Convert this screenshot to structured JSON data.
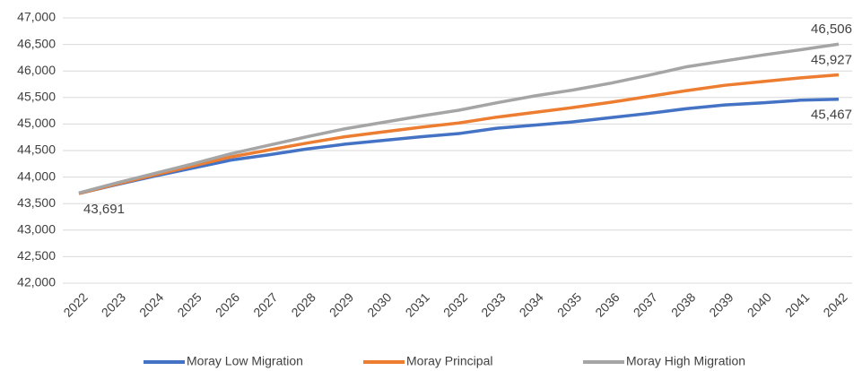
{
  "chart_data": {
    "type": "line",
    "categories": [
      "2022",
      "2023",
      "2024",
      "2025",
      "2026",
      "2027",
      "2028",
      "2029",
      "2030",
      "2031",
      "2032",
      "2033",
      "2034",
      "2035",
      "2036",
      "2037",
      "2038",
      "2039",
      "2040",
      "2041",
      "2042"
    ],
    "series": [
      {
        "name": "Moray Low Migration",
        "color": "#4472c4",
        "values": [
          43691,
          43860,
          44020,
          44170,
          44320,
          44420,
          44530,
          44620,
          44690,
          44760,
          44820,
          44920,
          44980,
          45040,
          45120,
          45200,
          45290,
          45360,
          45400,
          45450,
          45467
        ],
        "value_labels": [
          "43,691",
          null,
          null,
          null,
          null,
          null,
          null,
          null,
          null,
          null,
          null,
          null,
          null,
          null,
          null,
          null,
          null,
          null,
          null,
          null,
          "45,467"
        ]
      },
      {
        "name": "Moray Principal",
        "color": "#ed7d31",
        "values": [
          43691,
          43870,
          44040,
          44210,
          44380,
          44510,
          44640,
          44760,
          44850,
          44940,
          45020,
          45130,
          45220,
          45310,
          45410,
          45520,
          45630,
          45730,
          45800,
          45870,
          45927
        ],
        "value_labels": [
          null,
          null,
          null,
          null,
          null,
          null,
          null,
          null,
          null,
          null,
          null,
          null,
          null,
          null,
          null,
          null,
          null,
          null,
          null,
          null,
          "45,927"
        ]
      },
      {
        "name": "Moray High Migration",
        "color": "#a5a5a5",
        "values": [
          43700,
          43890,
          44070,
          44250,
          44440,
          44600,
          44760,
          44910,
          45030,
          45150,
          45260,
          45400,
          45530,
          45640,
          45770,
          45920,
          46080,
          46190,
          46300,
          46400,
          46506
        ],
        "value_labels": [
          null,
          null,
          null,
          null,
          null,
          null,
          null,
          null,
          null,
          null,
          null,
          null,
          null,
          null,
          null,
          null,
          null,
          null,
          null,
          null,
          "46,506"
        ]
      }
    ],
    "ylim": [
      42000,
      47000
    ],
    "yticks": [
      {
        "value": 42000,
        "label": "42,000"
      },
      {
        "value": 42500,
        "label": "42,500"
      },
      {
        "value": 43000,
        "label": "43,000"
      },
      {
        "value": 43500,
        "label": "43,500"
      },
      {
        "value": 44000,
        "label": "44,000"
      },
      {
        "value": 44500,
        "label": "44,500"
      },
      {
        "value": 45000,
        "label": "45,000"
      },
      {
        "value": 45500,
        "label": "45,500"
      },
      {
        "value": 46000,
        "label": "46,000"
      },
      {
        "value": 46500,
        "label": "46,500"
      },
      {
        "value": 47000,
        "label": "47,000"
      }
    ],
    "grid": true,
    "legend": "bottom"
  }
}
